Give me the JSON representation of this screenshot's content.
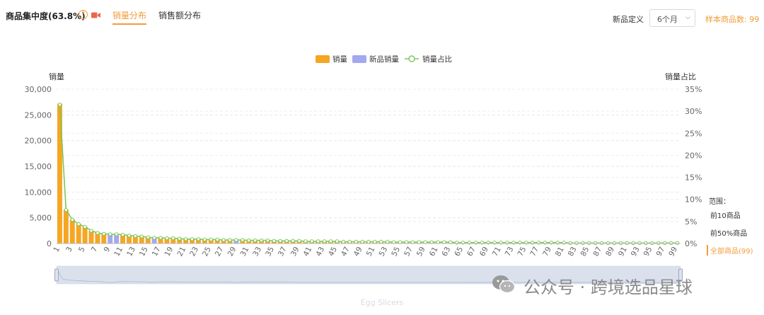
{
  "header": {
    "title": "商品集中度(63.8%)",
    "help_glyph": "?",
    "tabs": [
      {
        "label": "销量分布",
        "active": true
      },
      {
        "label": "销售额分布",
        "active": false
      }
    ],
    "new_def_label": "新品定义",
    "new_def_value": "6个月",
    "sample_label": "样本商品数: ",
    "sample_value": "99"
  },
  "range_panel": {
    "title": "范围：",
    "items": [
      "前10商品",
      "前50%商品",
      "全部商品(99)"
    ]
  },
  "watermark": "公众号 · 跨境选品星球",
  "footer": "Egg Slicers",
  "colors": {
    "accent": "#f29c38",
    "bar_sales": "#f5a623",
    "bar_new": "#a3a8ef",
    "line": "#7cc75a"
  },
  "icons": {
    "help": "question-circle-icon",
    "video": "video-camera-icon",
    "wechat": "wechat-icon"
  },
  "chart_data": {
    "type": "bar",
    "legend": [
      "销量",
      "新品销量",
      "销量占比"
    ],
    "legend_position": "top-center",
    "ylabel": "销量",
    "y2label": "销量占比",
    "ylim": [
      0,
      30000
    ],
    "y2lim": [
      0,
      35
    ],
    "yticks": [
      "0",
      "5,000",
      "10,000",
      "15,000",
      "20,000",
      "25,000",
      "30,000"
    ],
    "y2ticks": [
      "0%",
      "5%",
      "10%",
      "15%",
      "20%",
      "25%",
      "30%",
      "35%"
    ],
    "grid": true,
    "x": [
      1,
      2,
      3,
      4,
      5,
      6,
      7,
      8,
      9,
      10,
      11,
      12,
      13,
      14,
      15,
      16,
      17,
      18,
      19,
      20,
      21,
      22,
      23,
      24,
      25,
      26,
      27,
      28,
      29,
      30,
      31,
      32,
      33,
      34,
      35,
      36,
      37,
      38,
      39,
      40,
      41,
      42,
      43,
      44,
      45,
      46,
      47,
      48,
      49,
      50,
      51,
      52,
      53,
      54,
      55,
      56,
      57,
      58,
      59,
      60,
      61,
      62,
      63,
      64,
      65,
      66,
      67,
      68,
      69,
      70,
      71,
      72,
      73,
      74,
      75,
      76,
      77,
      78,
      79,
      80,
      81,
      82,
      83,
      84,
      85,
      86,
      87,
      88,
      89,
      90,
      91,
      92,
      93,
      94,
      95,
      96,
      97,
      98,
      99
    ],
    "xticks": [
      "1",
      "3",
      "5",
      "7",
      "9",
      "11",
      "13",
      "15",
      "17",
      "19",
      "21",
      "23",
      "25",
      "27",
      "29",
      "31",
      "33",
      "35",
      "37",
      "39",
      "41",
      "43",
      "45",
      "47",
      "49",
      "51",
      "53",
      "55",
      "57",
      "59",
      "61",
      "63",
      "65",
      "67",
      "69",
      "71",
      "73",
      "75",
      "77",
      "79",
      "81",
      "83",
      "85",
      "87",
      "89",
      "91",
      "93",
      "95",
      "97",
      "99"
    ],
    "series": [
      {
        "name": "销量",
        "kind": "bar",
        "values": [
          27200,
          6600,
          4700,
          3800,
          3300,
          2500,
          2100,
          1900,
          0,
          0,
          1700,
          1550,
          1450,
          1350,
          1250,
          0,
          1100,
          1050,
          1000,
          950,
          900,
          870,
          840,
          810,
          780,
          750,
          720,
          700,
          0,
          660,
          640,
          620,
          600,
          580,
          560,
          540,
          520,
          500,
          485,
          470,
          455,
          440,
          425,
          410,
          395,
          380,
          370,
          360,
          350,
          340,
          330,
          320,
          310,
          300,
          290,
          280,
          270,
          260,
          250,
          240,
          230,
          225,
          220,
          215,
          210,
          205,
          200,
          195,
          190,
          185,
          180,
          175,
          170,
          165,
          160,
          155,
          150,
          145,
          140,
          135,
          130,
          125,
          120,
          115,
          110,
          105,
          100,
          95,
          90,
          85,
          80,
          75,
          70,
          65,
          60,
          55,
          50,
          45,
          40
        ]
      },
      {
        "name": "新品销量",
        "kind": "bar",
        "values": [
          0,
          0,
          0,
          0,
          0,
          0,
          0,
          0,
          1850,
          1800,
          0,
          0,
          0,
          0,
          0,
          1150,
          0,
          0,
          0,
          0,
          0,
          0,
          0,
          0,
          0,
          0,
          0,
          0,
          680,
          0,
          0,
          0,
          0,
          0,
          0,
          0,
          0,
          0,
          0,
          0,
          0,
          0,
          0,
          0,
          0,
          0,
          0,
          0,
          0,
          0,
          0,
          0,
          0,
          0,
          0,
          0,
          0,
          0,
          0,
          0,
          0,
          0,
          0,
          0,
          0,
          0,
          0,
          0,
          0,
          0,
          0,
          0,
          0,
          0,
          0,
          0,
          0,
          0,
          0,
          0,
          0,
          0,
          0,
          0,
          0,
          0,
          0,
          0,
          0,
          0,
          0,
          0,
          0,
          0,
          0,
          0,
          0,
          0,
          0
        ]
      },
      {
        "name": "销量占比",
        "kind": "line",
        "axis": "right",
        "values": [
          31.5,
          7.6,
          5.4,
          4.4,
          3.8,
          2.9,
          2.4,
          2.2,
          2.1,
          2.1,
          2.0,
          1.8,
          1.7,
          1.6,
          1.4,
          1.3,
          1.3,
          1.2,
          1.2,
          1.1,
          1.0,
          1.0,
          1.0,
          0.9,
          0.9,
          0.9,
          0.8,
          0.8,
          0.8,
          0.8,
          0.7,
          0.7,
          0.7,
          0.7,
          0.6,
          0.6,
          0.6,
          0.6,
          0.6,
          0.5,
          0.5,
          0.5,
          0.5,
          0.5,
          0.5,
          0.4,
          0.4,
          0.4,
          0.4,
          0.4,
          0.4,
          0.4,
          0.4,
          0.3,
          0.3,
          0.3,
          0.3,
          0.3,
          0.3,
          0.3,
          0.3,
          0.3,
          0.3,
          0.2,
          0.2,
          0.2,
          0.2,
          0.2,
          0.2,
          0.2,
          0.2,
          0.2,
          0.2,
          0.2,
          0.2,
          0.2,
          0.2,
          0.2,
          0.2,
          0.2,
          0.2,
          0.1,
          0.1,
          0.1,
          0.1,
          0.1,
          0.1,
          0.1,
          0.1,
          0.1,
          0.1,
          0.1,
          0.1,
          0.1,
          0.1,
          0.1,
          0.1,
          0.1,
          0.1
        ]
      }
    ],
    "zoom_range": [
      0,
      100
    ]
  }
}
